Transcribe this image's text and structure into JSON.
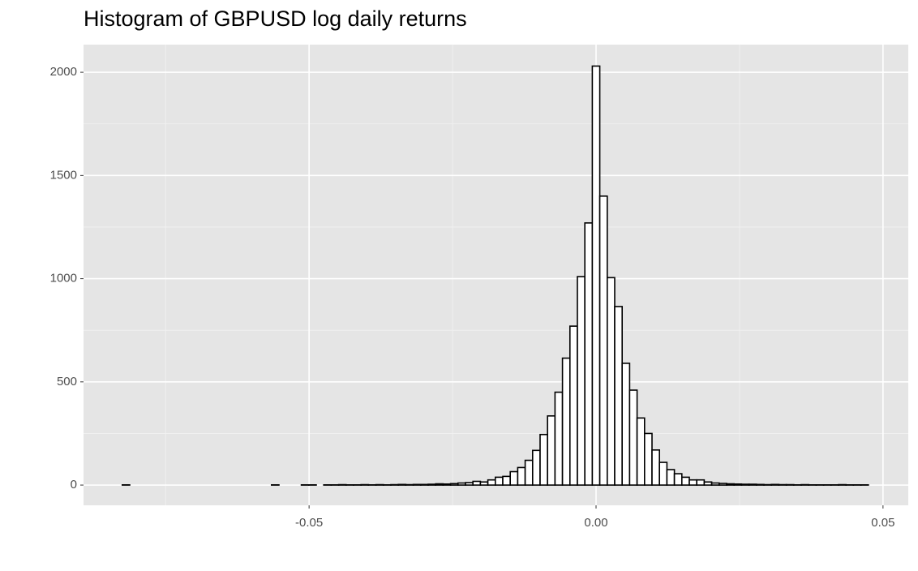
{
  "chart_data": {
    "type": "histogram",
    "title": "Histogram of GBPUSD log daily returns",
    "bins": [
      -0.08255,
      -0.08125,
      -0.07995,
      -0.07865,
      -0.07735,
      -0.07605,
      -0.07475,
      -0.07345,
      -0.07215,
      -0.07085,
      -0.06955,
      -0.06825,
      -0.06695,
      -0.06565,
      -0.06435,
      -0.06305,
      -0.06175,
      -0.06045,
      -0.05915,
      -0.05785,
      -0.05655,
      -0.05525,
      -0.05395,
      -0.05265,
      -0.05135,
      -0.05005,
      -0.04875,
      -0.04745,
      -0.04615,
      -0.04485,
      -0.04355,
      -0.04225,
      -0.04095,
      -0.03965,
      -0.03835,
      -0.03705,
      -0.03575,
      -0.03445,
      -0.03315,
      -0.03185,
      -0.03055,
      -0.02925,
      -0.02795,
      -0.02665,
      -0.02535,
      -0.02405,
      -0.02275,
      -0.02145,
      -0.02015,
      -0.01885,
      -0.01755,
      -0.01625,
      -0.01495,
      -0.01365,
      -0.01235,
      -0.01105,
      -0.00975,
      -0.00845,
      -0.00715,
      -0.00585,
      -0.00455,
      -0.00325,
      -0.00195,
      -0.00065,
      0.00065,
      0.00195,
      0.00325,
      0.00455,
      0.00585,
      0.00715,
      0.00845,
      0.00975,
      0.01105,
      0.01235,
      0.01365,
      0.01495,
      0.01625,
      0.01755,
      0.01885,
      0.02015,
      0.02145,
      0.02275,
      0.02405,
      0.02535,
      0.02665,
      0.02795,
      0.02925,
      0.03055,
      0.03185,
      0.03315,
      0.03445,
      0.03575,
      0.03705,
      0.03835,
      0.03965,
      0.04095,
      0.04225,
      0.04355,
      0.04485,
      0.04615,
      0.04745
    ],
    "values": [
      1,
      0,
      0,
      0,
      0,
      0,
      0,
      0,
      0,
      0,
      0,
      0,
      0,
      0,
      0,
      0,
      0,
      0,
      0,
      0,
      1,
      0,
      0,
      0,
      1,
      1,
      0,
      1,
      1,
      2,
      1,
      1,
      2,
      1,
      2,
      1,
      2,
      3,
      2,
      3,
      3,
      4,
      6,
      5,
      7,
      10,
      12,
      18,
      15,
      25,
      38,
      42,
      65,
      85,
      120,
      168,
      245,
      335,
      450,
      615,
      770,
      1010,
      1270,
      2030,
      1400,
      1005,
      865,
      590,
      460,
      325,
      250,
      170,
      110,
      75,
      55,
      38,
      25,
      25,
      15,
      10,
      8,
      6,
      5,
      4,
      4,
      3,
      2,
      3,
      2,
      2,
      1,
      2,
      1,
      1,
      1,
      1,
      2,
      1,
      1,
      1
    ],
    "fill": "#ffffff",
    "edgecolor": "#000000",
    "background": "#e5e5e5",
    "xlim": [
      -0.0893,
      0.0544
    ],
    "ylim": [
      -98,
      2134
    ],
    "xticks": [
      {
        "value": -0.05,
        "label": "-0.05"
      },
      {
        "value": 0,
        "label": "0.00"
      },
      {
        "value": 0.05,
        "label": "0.05"
      }
    ],
    "yticks": [
      0,
      500,
      1000,
      1500,
      2000
    ],
    "grid": true
  }
}
